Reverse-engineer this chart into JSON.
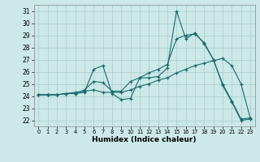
{
  "xlabel": "Humidex (Indice chaleur)",
  "background_color": "#cce8e8",
  "line_color": "#1a6b6b",
  "grid_color": "#aacccc",
  "xlim": [
    -0.5,
    23.5
  ],
  "ylim": [
    21.5,
    31.5
  ],
  "xticks": [
    0,
    1,
    2,
    3,
    4,
    5,
    6,
    7,
    8,
    9,
    10,
    11,
    12,
    13,
    14,
    15,
    16,
    17,
    18,
    19,
    20,
    21,
    22,
    23
  ],
  "yticks": [
    22,
    23,
    24,
    25,
    26,
    27,
    28,
    29,
    30,
    31
  ],
  "series": [
    [
      24.1,
      24.1,
      24.1,
      24.2,
      24.2,
      24.3,
      26.2,
      26.5,
      24.2,
      23.7,
      23.8,
      25.5,
      25.5,
      25.6,
      26.3,
      31.0,
      28.7,
      29.2,
      28.3,
      27.0,
      24.9,
      23.5,
      22.0,
      22.1
    ],
    [
      24.1,
      24.1,
      24.1,
      24.2,
      24.2,
      24.5,
      25.2,
      25.1,
      24.4,
      24.4,
      25.2,
      25.5,
      25.9,
      26.2,
      26.6,
      28.7,
      29.0,
      29.1,
      28.4,
      27.0,
      25.0,
      23.6,
      22.1,
      22.2
    ],
    [
      24.1,
      24.1,
      24.1,
      24.2,
      24.3,
      24.4,
      24.5,
      24.3,
      24.3,
      24.3,
      24.5,
      24.8,
      25.0,
      25.3,
      25.5,
      25.9,
      26.2,
      26.5,
      26.7,
      26.9,
      27.1,
      26.5,
      25.0,
      22.2
    ]
  ]
}
